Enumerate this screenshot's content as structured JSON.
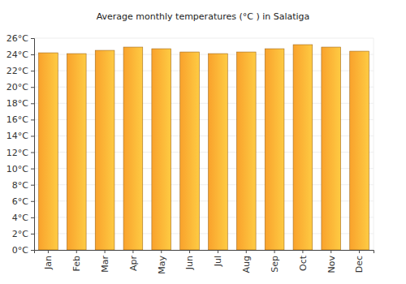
{
  "chart_data": {
    "type": "bar",
    "title": "Average monthly temperatures (°C ) in Salatiga",
    "categories": [
      "Jan",
      "Feb",
      "Mar",
      "Apr",
      "May",
      "Jun",
      "Jul",
      "Aug",
      "Sep",
      "Oct",
      "Nov",
      "Dec"
    ],
    "values": [
      24.2,
      24.1,
      24.5,
      24.9,
      24.7,
      24.3,
      24.1,
      24.3,
      24.7,
      25.2,
      24.9,
      24.4
    ],
    "color": "#f9a22c",
    "ylim": [
      0,
      26
    ],
    "yticks": [
      {
        "value": 0,
        "label": "0°C"
      },
      {
        "value": 2,
        "label": "2°C"
      },
      {
        "value": 4,
        "label": "4°C"
      },
      {
        "value": 6,
        "label": "6°C"
      },
      {
        "value": 8,
        "label": "8°C"
      },
      {
        "value": 10,
        "label": "10°C"
      },
      {
        "value": 12,
        "label": "12°C"
      },
      {
        "value": 14,
        "label": "14°C"
      },
      {
        "value": 16,
        "label": "16°C"
      },
      {
        "value": 18,
        "label": "18°C"
      },
      {
        "value": 20,
        "label": "20°C"
      },
      {
        "value": 22,
        "label": "22°C"
      },
      {
        "value": 24,
        "label": "24°C"
      },
      {
        "value": 26,
        "label": "26°C"
      }
    ],
    "grid": true
  }
}
